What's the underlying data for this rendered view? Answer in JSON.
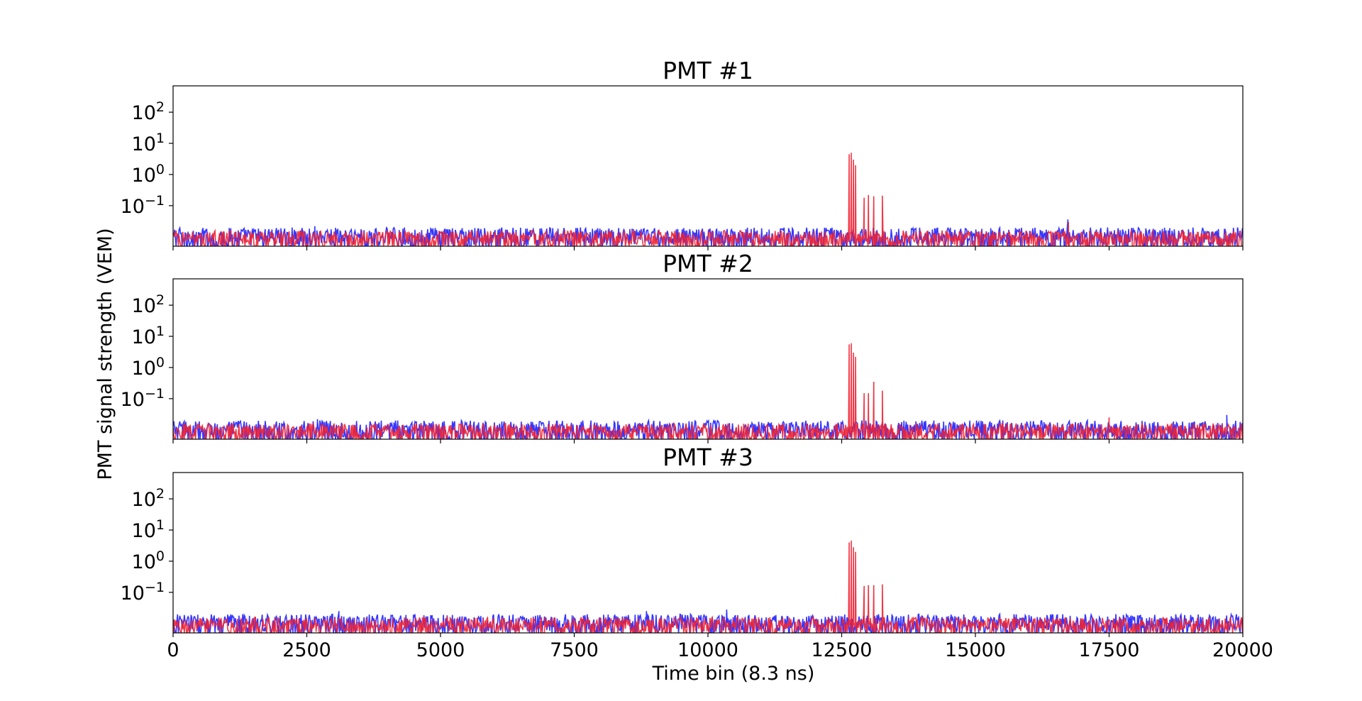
{
  "chart_data": {
    "type": "line",
    "xlabel": "Time bin (8.3 ns)",
    "ylabel": "PMT signal strength (VEM)",
    "xlim": [
      0,
      20000
    ],
    "x_ticks": [
      "0",
      "2500",
      "5000",
      "7500",
      "10000",
      "12500",
      "15000",
      "17500",
      "20000"
    ],
    "y_scale": "log",
    "ylim": [
      0.005,
      700
    ],
    "y_ticks": [
      {
        "base": "10",
        "exp": "−1",
        "value": 0.1
      },
      {
        "base": "10",
        "exp": "0",
        "value": 1
      },
      {
        "base": "10",
        "exp": "1",
        "value": 10
      },
      {
        "base": "10",
        "exp": "2",
        "value": 100
      }
    ],
    "grid": false,
    "legend": "none",
    "series_colors": [
      "#2b2bff",
      "#ee2233",
      "#d4103a"
    ],
    "panels": [
      {
        "title": "PMT #1",
        "series": [
          {
            "color": "#2b2bff",
            "baseline": [
              0.005,
              0.02
            ],
            "peaks": [
              [
                2650,
                0.022
              ],
              [
                16730,
                0.036
              ],
              [
                19900,
                0.02
              ]
            ]
          },
          {
            "color": "#ee2233",
            "baseline": [
              0.005,
              0.016
            ],
            "peaks": [
              [
                12600,
                0.012
              ],
              [
                12640,
                4.5
              ],
              [
                12680,
                5.0
              ],
              [
                12720,
                3.0
              ],
              [
                12760,
                2.0
              ],
              [
                12800,
                0.012
              ],
              [
                12920,
                0.18
              ],
              [
                12960,
                0.015
              ],
              [
                13000,
                0.22
              ],
              [
                13040,
                0.015
              ],
              [
                13100,
                0.2
              ],
              [
                13140,
                0.015
              ],
              [
                13260,
                0.21
              ],
              [
                13300,
                0.015
              ],
              [
                16740,
                0.03
              ]
            ]
          }
        ]
      },
      {
        "title": "PMT #2",
        "series": [
          {
            "color": "#2b2bff",
            "baseline": [
              0.005,
              0.02
            ],
            "peaks": [
              [
                2700,
                0.022
              ],
              [
                19700,
                0.03
              ]
            ]
          },
          {
            "color": "#ee2233",
            "baseline": [
              0.005,
              0.016
            ],
            "peaks": [
              [
                12600,
                0.012
              ],
              [
                12640,
                5.5
              ],
              [
                12680,
                6.0
              ],
              [
                12720,
                3.0
              ],
              [
                12760,
                2.2
              ],
              [
                12800,
                0.012
              ],
              [
                12920,
                0.15
              ],
              [
                12960,
                0.015
              ],
              [
                13000,
                0.15
              ],
              [
                13040,
                0.015
              ],
              [
                13100,
                0.35
              ],
              [
                13140,
                0.015
              ],
              [
                13260,
                0.18
              ],
              [
                13300,
                0.015
              ],
              [
                17500,
                0.025
              ]
            ]
          }
        ]
      },
      {
        "title": "PMT #3",
        "series": [
          {
            "color": "#2b2bff",
            "baseline": [
              0.005,
              0.02
            ],
            "peaks": [
              [
                3100,
                0.025
              ],
              [
                8850,
                0.025
              ],
              [
                10350,
                0.028
              ]
            ]
          },
          {
            "color": "#ee2233",
            "baseline": [
              0.005,
              0.016
            ],
            "peaks": [
              [
                12600,
                0.012
              ],
              [
                12640,
                4.0
              ],
              [
                12680,
                4.6
              ],
              [
                12720,
                2.8
              ],
              [
                12760,
                2.0
              ],
              [
                12800,
                0.012
              ],
              [
                12920,
                0.16
              ],
              [
                12960,
                0.015
              ],
              [
                13000,
                0.17
              ],
              [
                13040,
                0.015
              ],
              [
                13100,
                0.17
              ],
              [
                13140,
                0.015
              ],
              [
                13260,
                0.18
              ],
              [
                13300,
                0.015
              ]
            ]
          }
        ]
      }
    ]
  }
}
